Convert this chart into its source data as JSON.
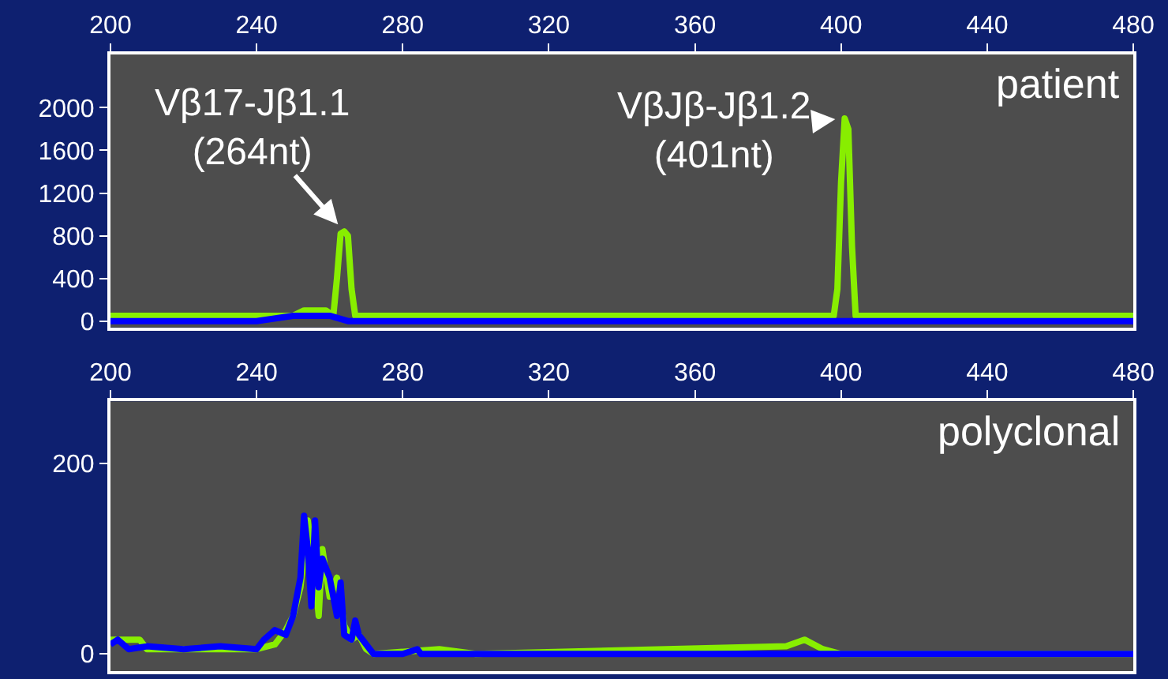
{
  "chart_data": [
    {
      "type": "line",
      "title": "patient",
      "x": [
        200,
        210,
        220,
        230,
        240,
        245,
        250,
        253,
        256,
        259,
        261,
        262,
        263,
        264,
        265,
        266,
        267,
        270,
        280,
        300,
        320,
        340,
        360,
        380,
        395,
        398,
        399,
        400,
        401,
        402,
        403,
        404,
        410,
        440,
        480
      ],
      "series": [
        {
          "color": "#88ee00",
          "values": [
            50,
            50,
            50,
            50,
            50,
            50,
            50,
            100,
            100,
            100,
            50,
            400,
            820,
            840,
            800,
            300,
            50,
            50,
            50,
            50,
            50,
            50,
            50,
            50,
            50,
            50,
            300,
            1300,
            1900,
            1800,
            700,
            50,
            50,
            50,
            50
          ]
        },
        {
          "color": "#0000ff",
          "x": [
            200,
            240,
            250,
            255,
            260,
            265,
            270,
            280,
            480
          ],
          "values": [
            0,
            0,
            50,
            50,
            50,
            0,
            0,
            0,
            0
          ]
        }
      ],
      "annotations": [
        {
          "text": "Vβ17-Jβ1.1\n(264nt)",
          "x": 264,
          "y": 840
        },
        {
          "text": "VβJβ-Jβ1.2\n(401nt)",
          "x": 401,
          "y": 1900
        }
      ],
      "xlim": [
        200,
        480
      ],
      "xticks": [
        200,
        240,
        280,
        320,
        360,
        400,
        440,
        480
      ],
      "ylim": [
        -60,
        2500
      ],
      "yticks": [
        0,
        400,
        800,
        1200,
        1600,
        2000
      ],
      "grid": false
    },
    {
      "type": "line",
      "title": "polyclonal",
      "x": [
        200,
        208,
        210,
        240,
        245,
        248,
        250,
        252,
        254,
        256,
        257,
        258,
        260,
        262,
        264,
        266,
        268,
        270,
        272,
        290,
        300,
        385,
        390,
        395,
        400,
        480
      ],
      "series": [
        {
          "color": "#88ee00",
          "values": [
            15,
            15,
            5,
            5,
            10,
            25,
            40,
            70,
            140,
            80,
            40,
            110,
            60,
            80,
            30,
            15,
            20,
            5,
            0,
            5,
            0,
            8,
            15,
            5,
            0,
            0
          ]
        },
        {
          "color": "#0000ff",
          "x": [
            200,
            202,
            205,
            210,
            220,
            230,
            240,
            242,
            245,
            248,
            250,
            252,
            253,
            254,
            255,
            256,
            257,
            258,
            260,
            262,
            263,
            264,
            266,
            267,
            268,
            270,
            272,
            280,
            284,
            285,
            480
          ],
          "values": [
            10,
            15,
            5,
            8,
            5,
            8,
            5,
            15,
            25,
            20,
            40,
            80,
            145,
            110,
            50,
            140,
            70,
            100,
            80,
            40,
            75,
            20,
            15,
            35,
            20,
            10,
            0,
            0,
            5,
            0,
            0
          ]
        }
      ],
      "xlim": [
        200,
        480
      ],
      "xticks": [
        200,
        240,
        280,
        320,
        360,
        400,
        440,
        480
      ],
      "ylim": [
        -18,
        265
      ],
      "yticks": [
        0,
        200
      ],
      "grid": false
    }
  ]
}
